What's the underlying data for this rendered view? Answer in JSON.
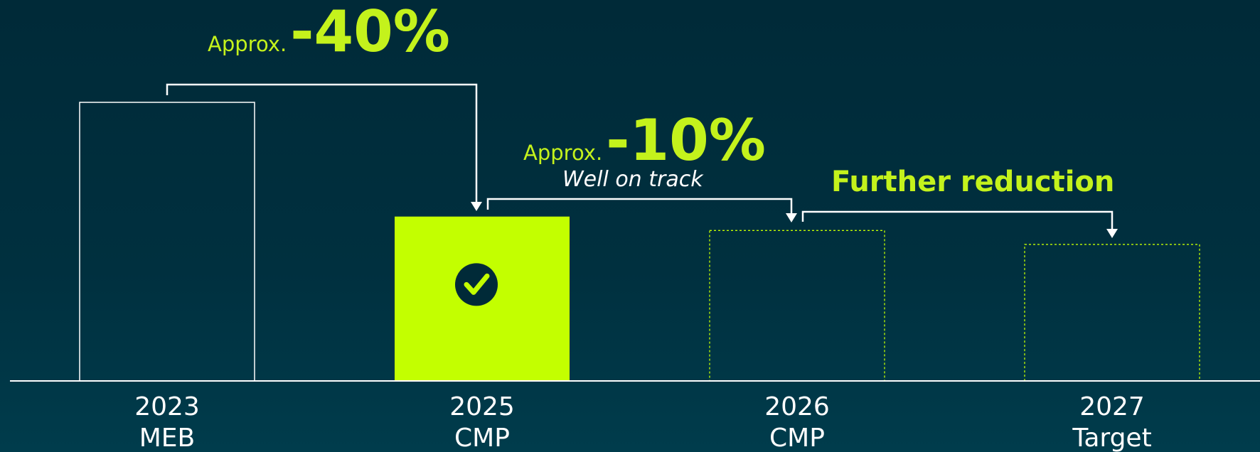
{
  "chart_data": {
    "type": "bar",
    "categories": [
      "2023",
      "2025",
      "2026",
      "2027"
    ],
    "sublabels": [
      "MEB",
      "CMP",
      "CMP",
      "Target"
    ],
    "values": [
      100,
      59,
      54,
      49
    ],
    "styles": [
      "outline",
      "filled",
      "dotted",
      "dotted"
    ],
    "ylim": [
      0,
      100
    ],
    "colors": {
      "outline": "#ffffff",
      "filled": "#c3ff00",
      "dotted": "#c3ff00"
    },
    "annotations": [
      {
        "prefix": "Approx.",
        "text": "-40%"
      },
      {
        "prefix": "Approx.",
        "text": "-10%",
        "note": "Well on track"
      },
      {
        "text": "Further reduction"
      }
    ]
  }
}
